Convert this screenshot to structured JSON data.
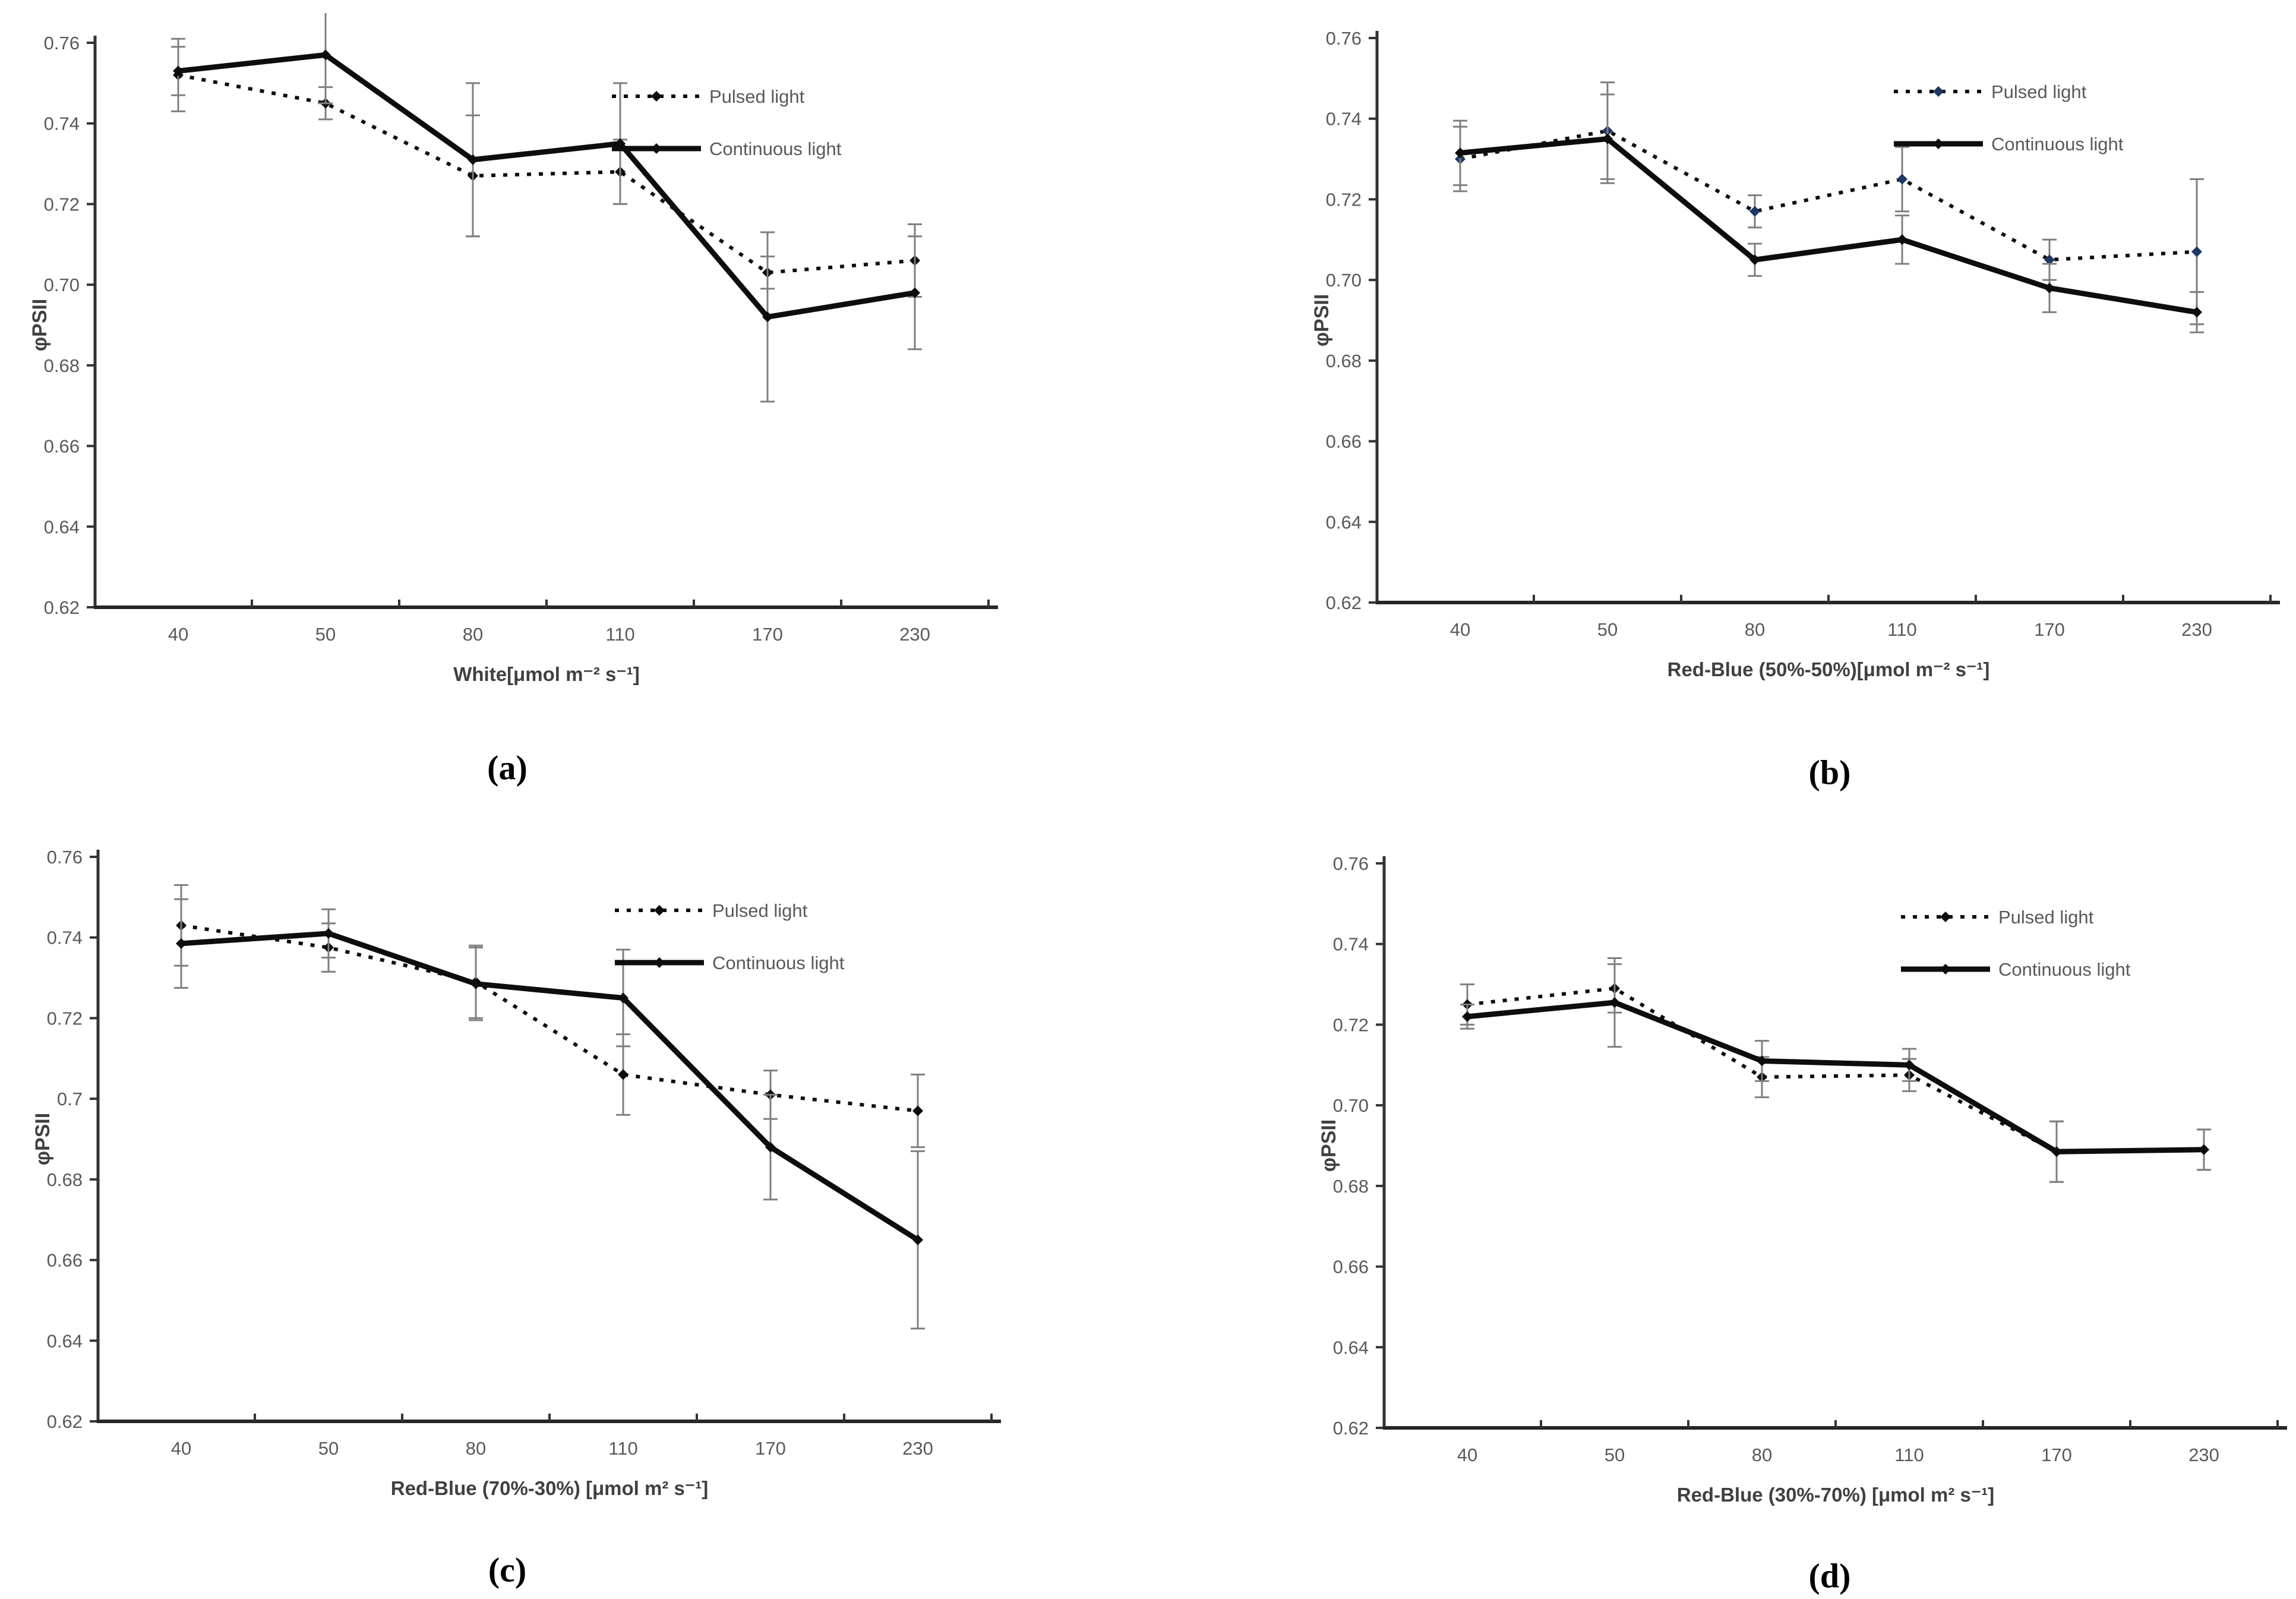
{
  "figure": {
    "y_axis_label": "φPSII",
    "legend": {
      "pulsed": "Pulsed light",
      "continuous": "Continuous light"
    },
    "colors": {
      "line": "#0d0d0d",
      "error_bar": "#7f7f7f",
      "tick_text": "#595959",
      "axis_title": "#404040",
      "axis_line": "#333333",
      "pulsed_marker_b": "#1F3864"
    }
  },
  "captions": {
    "a": "(a)",
    "b": "(b)",
    "c": "(c)",
    "d": "(d)"
  },
  "chart_data": [
    {
      "id": "a",
      "type": "line",
      "caption": "(a)",
      "title": "",
      "xlabel": "White[μmol m⁻² s⁻¹]",
      "ylabel": "φPSII",
      "categories": [
        "40",
        "50",
        "80",
        "110",
        "170",
        "230"
      ],
      "ylim": [
        0.62,
        0.76
      ],
      "ytick_step": 0.02,
      "ytick_labels": [
        "0.76",
        "0.74",
        "0.72",
        "0.70",
        "0.68",
        "0.66",
        "0.64",
        "0.62"
      ],
      "grid": false,
      "legend_position": "top-right",
      "series": [
        {
          "name": "Pulsed light",
          "style": "dotted",
          "marker_color": "#0d0d0d",
          "values": [
            0.752,
            0.745,
            0.727,
            0.728,
            0.703,
            0.706
          ],
          "errors": [
            0.009,
            0.004,
            0.015,
            0.008,
            0.004,
            0.009
          ]
        },
        {
          "name": "Continuous light",
          "style": "solid",
          "marker_color": "#0d0d0d",
          "values": [
            0.753,
            0.757,
            0.731,
            0.735,
            0.692,
            0.698
          ],
          "errors": [
            0.006,
            0.012,
            0.019,
            0.015,
            0.021,
            0.014
          ]
        }
      ]
    },
    {
      "id": "b",
      "type": "line",
      "caption": "(b)",
      "title": "",
      "xlabel": "Red-Blue (50%-50%)[μmol m⁻² s⁻¹]",
      "ylabel": "φPSII",
      "categories": [
        "40",
        "50",
        "80",
        "110",
        "170",
        "230"
      ],
      "ylim": [
        0.62,
        0.76
      ],
      "ytick_step": 0.02,
      "ytick_labels": [
        "0.76",
        "0.74",
        "0.72",
        "0.70",
        "0.68",
        "0.66",
        "0.64",
        "0.62"
      ],
      "grid": false,
      "legend_position": "top-right",
      "series": [
        {
          "name": "Pulsed light",
          "style": "dotted",
          "marker_color": "#1F3864",
          "values": [
            0.73,
            0.737,
            0.717,
            0.725,
            0.705,
            0.707
          ],
          "errors": [
            0.008,
            0.012,
            0.004,
            0.008,
            0.005,
            0.018
          ]
        },
        {
          "name": "Continuous light",
          "style": "solid",
          "marker_color": "#0d0d0d",
          "values": [
            0.7315,
            0.735,
            0.705,
            0.71,
            0.698,
            0.692
          ],
          "errors": [
            0.008,
            0.011,
            0.004,
            0.006,
            0.006,
            0.005
          ]
        }
      ]
    },
    {
      "id": "c",
      "type": "line",
      "caption": "(c)",
      "title": "",
      "xlabel": "Red-Blue (70%-30%) [μmol m² s⁻¹]",
      "ylabel": "φPSII",
      "categories": [
        "40",
        "50",
        "80",
        "110",
        "170",
        "230"
      ],
      "ylim": [
        0.62,
        0.76
      ],
      "ytick_step": 0.02,
      "ytick_labels": [
        "0.76",
        "0.74",
        "0.72",
        "0.7",
        "0.68",
        "0.66",
        "0.64",
        "0.62"
      ],
      "grid": false,
      "legend_position": "top-right",
      "series": [
        {
          "name": "Pulsed light",
          "style": "dotted",
          "marker_color": "#0d0d0d",
          "values": [
            0.743,
            0.7375,
            0.729,
            0.706,
            0.701,
            0.697
          ],
          "errors": [
            0.01,
            0.006,
            0.009,
            0.01,
            0.006,
            0.009
          ]
        },
        {
          "name": "Continuous light",
          "style": "solid",
          "marker_color": "#0d0d0d",
          "values": [
            0.7385,
            0.741,
            0.7285,
            0.725,
            0.688,
            0.665
          ],
          "errors": [
            0.011,
            0.006,
            0.009,
            0.012,
            0.013,
            0.022
          ]
        }
      ]
    },
    {
      "id": "d",
      "type": "line",
      "caption": "(d)",
      "title": "",
      "xlabel": "Red-Blue (30%-70%) [μmol m² s⁻¹]",
      "ylabel": "φPSII",
      "categories": [
        "40",
        "50",
        "80",
        "110",
        "170",
        "230"
      ],
      "ylim": [
        0.62,
        0.76
      ],
      "ytick_step": 0.02,
      "ytick_labels": [
        "0.76",
        "0.74",
        "0.72",
        "0.70",
        "0.68",
        "0.66",
        "0.64",
        "0.62"
      ],
      "grid": false,
      "legend_position": "top-right",
      "series": [
        {
          "name": "Pulsed light",
          "style": "dotted",
          "marker_color": "#0d0d0d",
          "values": [
            0.725,
            0.729,
            0.707,
            0.7075,
            0.6885,
            0.689
          ],
          "errors": [
            0.005,
            0.006,
            0.005,
            0.004,
            0.0075,
            0.005
          ]
        },
        {
          "name": "Continuous light",
          "style": "solid",
          "marker_color": "#0d0d0d",
          "values": [
            0.722,
            0.7255,
            0.711,
            0.71,
            0.6885,
            0.689
          ],
          "errors": [
            0.003,
            0.011,
            0.005,
            0.004,
            0.0075,
            0.005
          ]
        }
      ]
    }
  ]
}
